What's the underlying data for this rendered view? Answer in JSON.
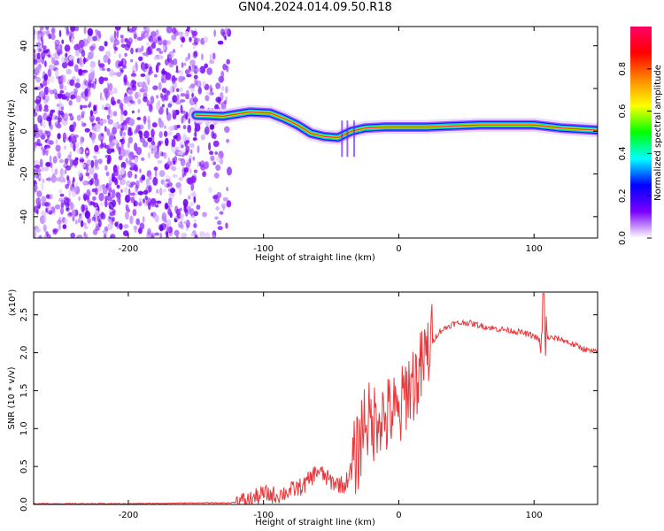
{
  "figure": {
    "title": "GN04.2024.014.09.50.R18"
  },
  "chart_data": [
    {
      "type": "heatmap",
      "xlabel": "Height of straight line (km)",
      "ylabel": "Frequency (Hz)",
      "xlim": [
        -270,
        147
      ],
      "ylim": [
        -50,
        49
      ],
      "x_ticks": [
        "-200",
        "-100",
        "0",
        "100"
      ],
      "y_ticks": [
        "40",
        "20",
        "0",
        "-20",
        "-40"
      ],
      "colorbar": {
        "label": "Normalized spectral amplitude",
        "range": [
          0,
          1
        ],
        "ticks": [
          "0.0",
          "0.2",
          "0.4",
          "0.6",
          "0.8"
        ],
        "colors": [
          "#ffffff",
          "#7a00ff",
          "#0000ff",
          "#00ffff",
          "#00ff00",
          "#ffff00",
          "#ff8800",
          "#ff0000",
          "#ff0066"
        ]
      },
      "features": {
        "noise_region_x": [
          -270,
          -125
        ],
        "signal_line": [
          {
            "x": -150,
            "y": 7.5
          },
          {
            "x": -130,
            "y": 7
          },
          {
            "x": -110,
            "y": 9
          },
          {
            "x": -95,
            "y": 8.5
          },
          {
            "x": -85,
            "y": 6
          },
          {
            "x": -75,
            "y": 3
          },
          {
            "x": -65,
            "y": -1
          },
          {
            "x": -55,
            "y": -2.5
          },
          {
            "x": -45,
            "y": -3
          },
          {
            "x": -35,
            "y": 0
          },
          {
            "x": -25,
            "y": 1.5
          },
          {
            "x": -10,
            "y": 2
          },
          {
            "x": 20,
            "y": 2
          },
          {
            "x": 60,
            "y": 3
          },
          {
            "x": 100,
            "y": 3
          },
          {
            "x": 120,
            "y": 1.5
          },
          {
            "x": 147,
            "y": 0.5
          }
        ]
      }
    },
    {
      "type": "line",
      "xlabel": "Height of straight line (km)",
      "ylabel": "SNR (10 * v/v)",
      "y_scale_label": "(x10⁴)",
      "xlim": [
        -270,
        147
      ],
      "ylim": [
        0,
        2.8
      ],
      "x_ticks": [
        "-200",
        "-100",
        "0",
        "100"
      ],
      "y_ticks": [
        "0.0",
        "0.5",
        "1.0",
        "1.5",
        "2.0",
        "2.5"
      ],
      "series": [
        {
          "color": "#e8383b",
          "points": [
            {
              "x": -270,
              "y": 0.01
            },
            {
              "x": -200,
              "y": 0.01
            },
            {
              "x": -150,
              "y": 0.02
            },
            {
              "x": -125,
              "y": 0.02
            },
            {
              "x": -110,
              "y": 0.06
            },
            {
              "x": -100,
              "y": 0.14
            },
            {
              "x": -90,
              "y": 0.12
            },
            {
              "x": -80,
              "y": 0.18
            },
            {
              "x": -70,
              "y": 0.25
            },
            {
              "x": -60,
              "y": 0.45
            },
            {
              "x": -50,
              "y": 0.3
            },
            {
              "x": -40,
              "y": 0.25
            },
            {
              "x": -30,
              "y": 0.7
            },
            {
              "x": -25,
              "y": 1.2
            },
            {
              "x": -20,
              "y": 1.0
            },
            {
              "x": -15,
              "y": 1.25
            },
            {
              "x": -10,
              "y": 1.1
            },
            {
              "x": -5,
              "y": 1.25
            },
            {
              "x": 0,
              "y": 1.1
            },
            {
              "x": 5,
              "y": 1.5
            },
            {
              "x": 10,
              "y": 1.6
            },
            {
              "x": 15,
              "y": 1.7
            },
            {
              "x": 20,
              "y": 1.95
            },
            {
              "x": 25,
              "y": 2.15
            },
            {
              "x": 30,
              "y": 2.28
            },
            {
              "x": 40,
              "y": 2.38
            },
            {
              "x": 50,
              "y": 2.4
            },
            {
              "x": 60,
              "y": 2.36
            },
            {
              "x": 70,
              "y": 2.32
            },
            {
              "x": 80,
              "y": 2.3
            },
            {
              "x": 90,
              "y": 2.27
            },
            {
              "x": 100,
              "y": 2.22
            },
            {
              "x": 105,
              "y": 2.15
            },
            {
              "x": 110,
              "y": 2.2
            },
            {
              "x": 120,
              "y": 2.18
            },
            {
              "x": 130,
              "y": 2.1
            },
            {
              "x": 140,
              "y": 2.03
            },
            {
              "x": 147,
              "y": 2.0
            }
          ]
        }
      ]
    }
  ]
}
